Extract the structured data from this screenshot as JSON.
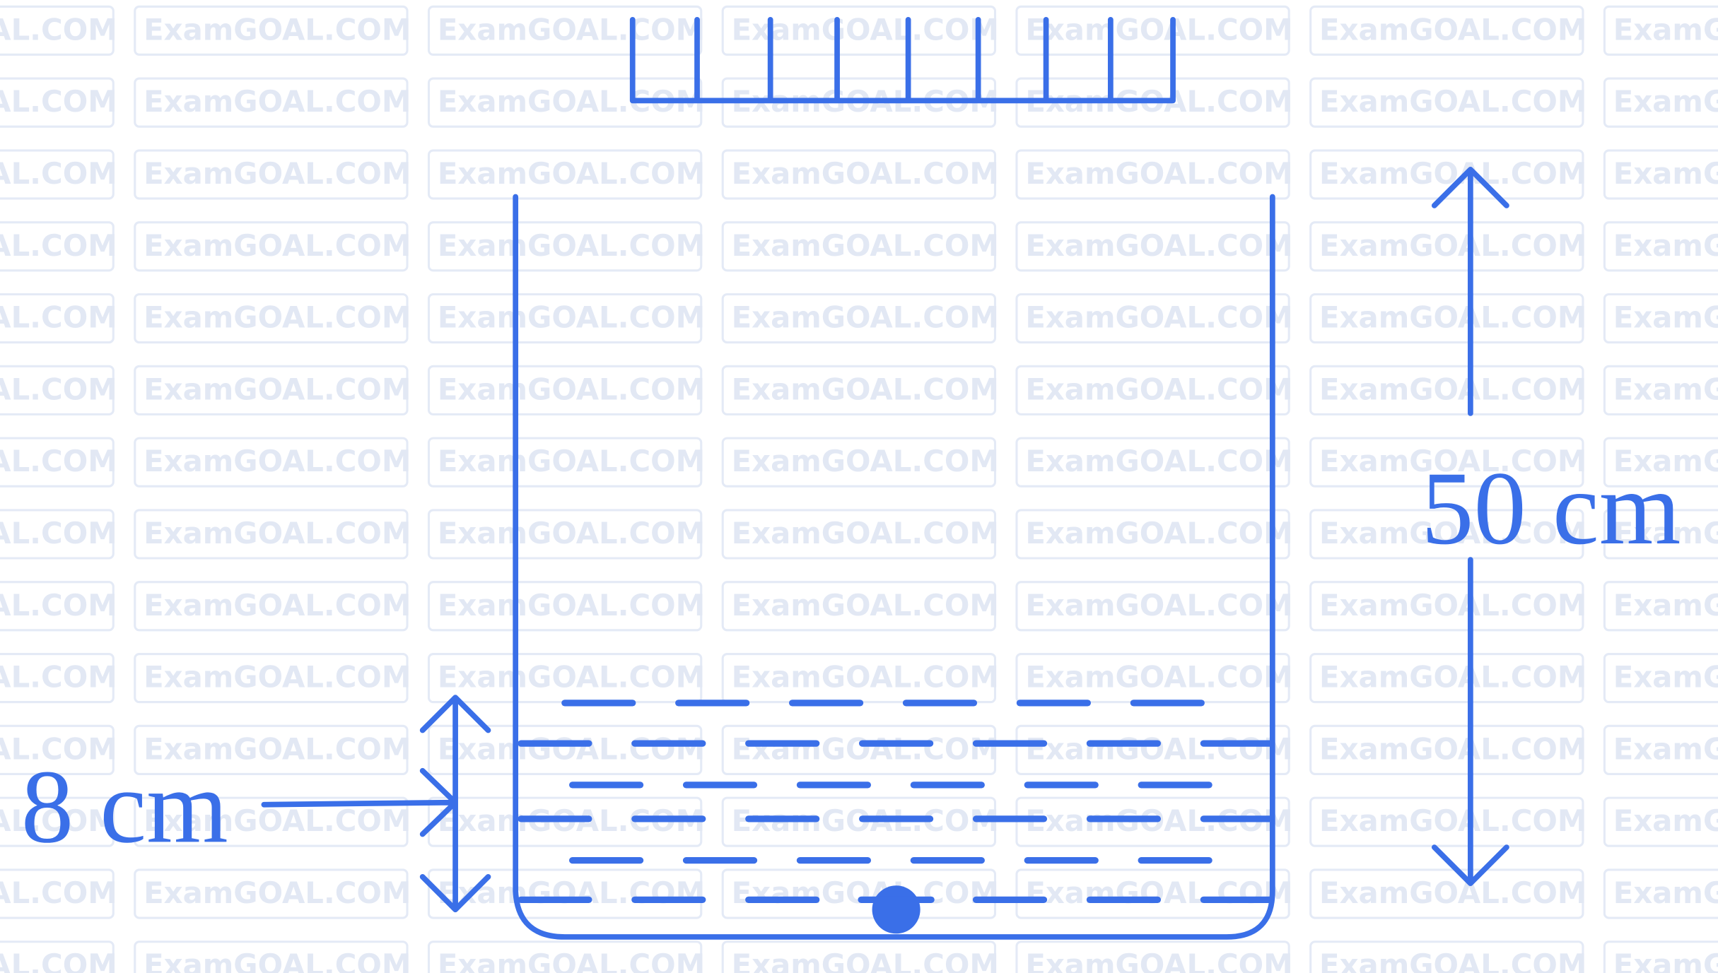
{
  "watermark": "ExamGOAL.COM",
  "labels": {
    "height": "50 cm",
    "depth": "8 cm"
  }
}
